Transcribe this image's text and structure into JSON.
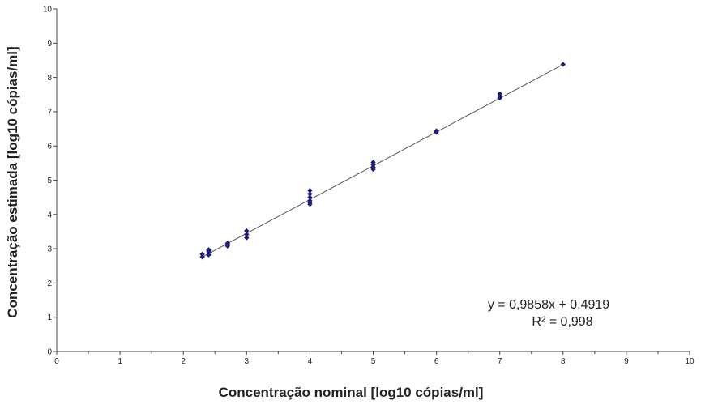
{
  "chart_data": {
    "type": "scatter",
    "xlabel": "Concentração nominal [log10 cópias/ml]",
    "ylabel": "Concentração estimada [log10 cópias/ml]",
    "xlim": [
      0,
      10
    ],
    "ylim": [
      0,
      10
    ],
    "x_ticks": [
      "0",
      "1",
      "2",
      "3",
      "4",
      "5",
      "6",
      "7",
      "8",
      "9",
      "10"
    ],
    "y_ticks": [
      "0",
      "1",
      "2",
      "3",
      "4",
      "5",
      "6",
      "7",
      "8",
      "9",
      "10"
    ],
    "grid": false,
    "points": [
      {
        "x": 2.3,
        "y": 2.76
      },
      {
        "x": 2.3,
        "y": 2.84
      },
      {
        "x": 2.4,
        "y": 2.82
      },
      {
        "x": 2.4,
        "y": 2.88
      },
      {
        "x": 2.4,
        "y": 2.93
      },
      {
        "x": 2.4,
        "y": 2.97
      },
      {
        "x": 2.7,
        "y": 3.08
      },
      {
        "x": 2.7,
        "y": 3.12
      },
      {
        "x": 2.7,
        "y": 3.16
      },
      {
        "x": 3.0,
        "y": 3.32
      },
      {
        "x": 3.0,
        "y": 3.42
      },
      {
        "x": 3.0,
        "y": 3.52
      },
      {
        "x": 4.0,
        "y": 4.3
      },
      {
        "x": 4.0,
        "y": 4.35
      },
      {
        "x": 4.0,
        "y": 4.4
      },
      {
        "x": 4.0,
        "y": 4.5
      },
      {
        "x": 4.0,
        "y": 4.6
      },
      {
        "x": 4.0,
        "y": 4.7
      },
      {
        "x": 5.0,
        "y": 5.32
      },
      {
        "x": 5.0,
        "y": 5.38
      },
      {
        "x": 5.0,
        "y": 5.45
      },
      {
        "x": 5.0,
        "y": 5.52
      },
      {
        "x": 6.0,
        "y": 6.4
      },
      {
        "x": 6.0,
        "y": 6.44
      },
      {
        "x": 7.0,
        "y": 7.4
      },
      {
        "x": 7.0,
        "y": 7.46
      },
      {
        "x": 7.0,
        "y": 7.52
      },
      {
        "x": 8.0,
        "y": 8.38
      }
    ],
    "trendline": {
      "slope": 0.9858,
      "intercept": 0.4919,
      "x_range": [
        2.3,
        8.0
      ],
      "equation": "y = 0,9858x + 0,4919",
      "r_squared": "R² = 0,998"
    },
    "colors": {
      "marker": "#1c1c7a",
      "trendline": "#555555",
      "axis": "#444444"
    }
  }
}
